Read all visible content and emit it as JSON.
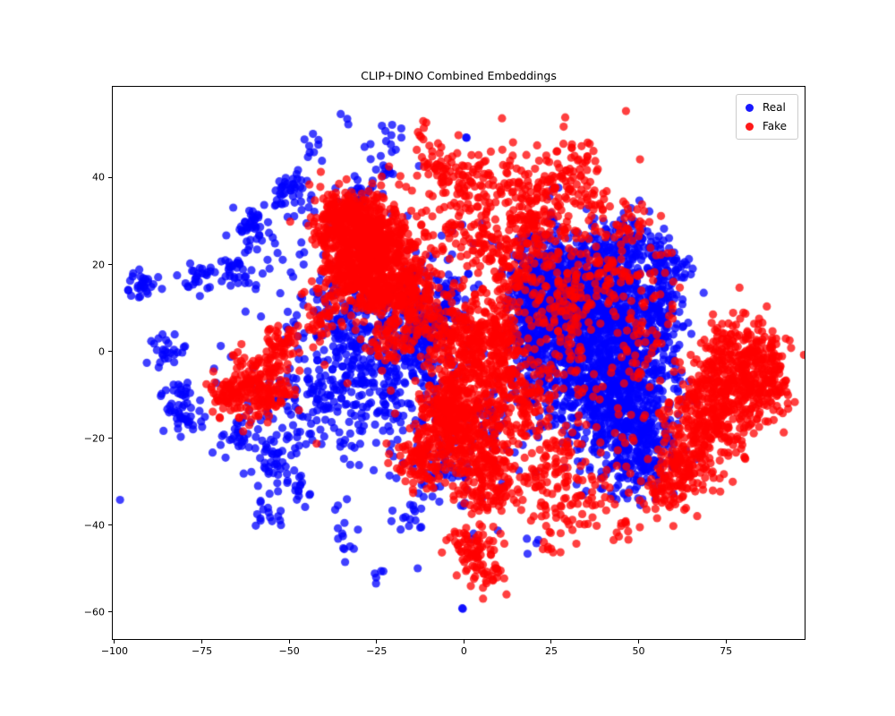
{
  "chart_data": {
    "type": "scatter",
    "title": "CLIP+DINO Combined Embeddings",
    "xlabel": "",
    "ylabel": "",
    "xlim": [
      -100.5,
      97.5
    ],
    "ylim": [
      -66.2,
      60.9
    ],
    "xticks": [
      -100,
      -75,
      -50,
      -25,
      0,
      25,
      50,
      75
    ],
    "yticks": [
      -60,
      -40,
      -20,
      0,
      20,
      40
    ],
    "grid": false,
    "legend_position": "upper right",
    "marker": {
      "radius_px": 4.6,
      "alpha": 0.75
    },
    "seed": 42,
    "series": [
      {
        "name": "Real",
        "color": "#0000ff",
        "cluster_format": [
          "center_x",
          "center_y",
          "sigma_x",
          "sigma_y",
          "n_points"
        ],
        "clusters": [
          [
            40,
            3,
            9,
            11,
            900
          ],
          [
            46,
            -13,
            7,
            8,
            450
          ],
          [
            33,
            14,
            6,
            6,
            350
          ],
          [
            24,
            6,
            4,
            11,
            300
          ],
          [
            50,
            -24,
            5,
            5,
            160
          ],
          [
            55,
            10,
            4,
            6,
            120
          ],
          [
            18,
            10,
            3.5,
            9,
            220
          ],
          [
            -25,
            -6,
            11,
            7,
            260
          ],
          [
            -14,
            4,
            7,
            6,
            150
          ],
          [
            -8,
            12,
            5,
            4,
            80
          ],
          [
            -35,
            8,
            6,
            5,
            90
          ],
          [
            -45,
            -12,
            6,
            5,
            70
          ],
          [
            -92,
            15,
            2.5,
            2,
            30
          ],
          [
            -76,
            17,
            2.5,
            2,
            25
          ],
          [
            -65,
            19,
            3,
            2.5,
            30
          ],
          [
            -60,
            28,
            2.5,
            2.5,
            40
          ],
          [
            -49,
            36,
            3,
            2.5,
            45
          ],
          [
            -85,
            0,
            2.5,
            2,
            25
          ],
          [
            -83,
            -10,
            2.5,
            2.5,
            30
          ],
          [
            -79,
            -16,
            2.5,
            2,
            25
          ],
          [
            -65,
            -19,
            3,
            2.5,
            30
          ],
          [
            -54,
            -24,
            3,
            3,
            40
          ],
          [
            -57,
            -37,
            2.5,
            2,
            18
          ],
          [
            -47,
            -31,
            2.5,
            2,
            15
          ],
          [
            -43,
            48,
            2,
            2,
            8
          ],
          [
            -35,
            54,
            1,
            1,
            3
          ],
          [
            -23,
            43,
            2.5,
            2,
            15
          ],
          [
            -22,
            51,
            1.5,
            1.5,
            8
          ],
          [
            -30,
            36,
            2,
            2,
            20
          ],
          [
            1,
            50,
            1,
            1,
            2
          ],
          [
            -25,
            -51,
            1.5,
            1.5,
            5
          ],
          [
            -33,
            -43,
            2,
            2,
            8
          ],
          [
            -17,
            -38,
            2.5,
            2,
            12
          ],
          [
            0,
            -59,
            0.5,
            0.5,
            2
          ],
          [
            20,
            -45,
            1.5,
            1.5,
            4
          ],
          [
            -5,
            -25,
            5,
            4,
            40
          ],
          [
            8,
            -18,
            4,
            4,
            40
          ],
          [
            58,
            20,
            3,
            3,
            60
          ],
          [
            45,
            25,
            5,
            3,
            80
          ],
          [
            -30,
            5,
            22,
            18,
            180
          ],
          [
            -10,
            -25,
            15,
            10,
            60
          ]
        ]
      },
      {
        "name": "Fake",
        "color": "#ff0000",
        "cluster_format": [
          "center_x",
          "center_y",
          "sigma_x",
          "sigma_y",
          "n_points"
        ],
        "clusters": [
          [
            -27,
            25,
            6,
            5.5,
            650
          ],
          [
            -20,
            14,
            7,
            4.5,
            350
          ],
          [
            -35,
            30,
            4,
            3.5,
            180
          ],
          [
            -33,
            17,
            4,
            3,
            120
          ],
          [
            5,
            38,
            11,
            5,
            160
          ],
          [
            28,
            37,
            8,
            5.5,
            130
          ],
          [
            -8,
            43,
            2,
            2,
            25
          ],
          [
            -12,
            50,
            1.5,
            1.5,
            8
          ],
          [
            35,
            45,
            2.5,
            2,
            10
          ],
          [
            47,
            30,
            3,
            2.5,
            25
          ],
          [
            20,
            28,
            4,
            3.5,
            70
          ],
          [
            3,
            25,
            4,
            4,
            60
          ],
          [
            14,
            19,
            4,
            4,
            80
          ],
          [
            3,
            -7,
            7,
            7,
            300
          ],
          [
            -3,
            -20,
            6,
            5,
            220
          ],
          [
            7,
            -30,
            5,
            4.5,
            160
          ],
          [
            0,
            4,
            7,
            4.5,
            170
          ],
          [
            -5,
            -13,
            3,
            3.5,
            130
          ],
          [
            -13,
            -25,
            3.5,
            3,
            80
          ],
          [
            10,
            5,
            4,
            5,
            90
          ],
          [
            2,
            -45,
            3.5,
            3,
            70
          ],
          [
            7,
            -52,
            2,
            2,
            25
          ],
          [
            77,
            -6,
            6,
            6.5,
            380
          ],
          [
            68,
            -19,
            5,
            5.5,
            220
          ],
          [
            86,
            -5,
            3.5,
            4.5,
            130
          ],
          [
            62,
            -28,
            3.5,
            3.5,
            90
          ],
          [
            57,
            -33,
            2.5,
            2.5,
            35
          ],
          [
            -58,
            -8,
            4.5,
            3.5,
            180
          ],
          [
            -67,
            -10,
            2.5,
            2.5,
            70
          ],
          [
            -52,
            2,
            2.5,
            2.5,
            45
          ],
          [
            -20,
            2,
            3.5,
            2.5,
            50
          ],
          [
            30,
            -35,
            7,
            4,
            60
          ],
          [
            45,
            -41,
            2,
            2,
            10
          ],
          [
            25,
            -45,
            2,
            1.5,
            8
          ],
          [
            28,
            10,
            5,
            9,
            110
          ],
          [
            40,
            18,
            6,
            5,
            70
          ],
          [
            52,
            5,
            4,
            8,
            60
          ],
          [
            17,
            -13,
            4,
            5,
            70
          ],
          [
            25,
            -25,
            4,
            4,
            50
          ],
          [
            -40,
            8,
            3,
            3,
            40
          ],
          [
            15,
            5,
            25,
            20,
            150
          ],
          [
            30,
            -25,
            15,
            8,
            60
          ]
        ]
      }
    ]
  }
}
